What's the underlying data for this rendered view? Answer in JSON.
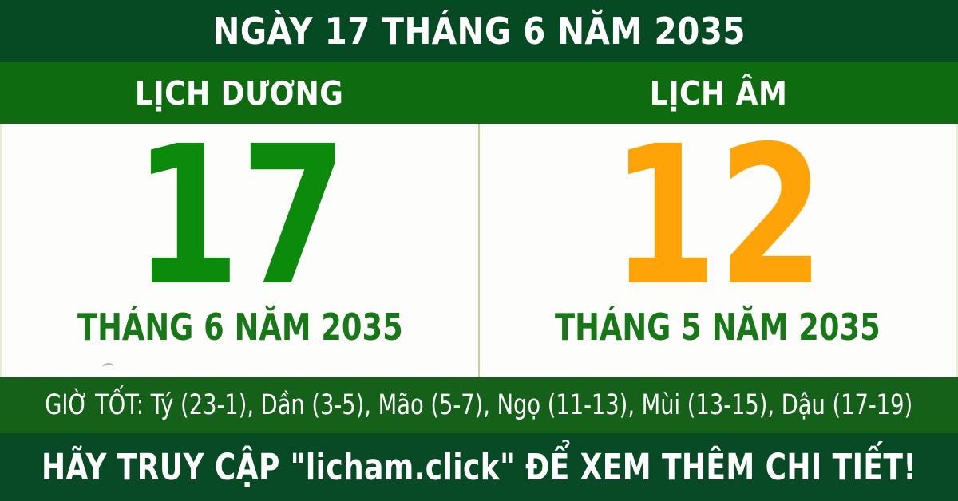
{
  "banner": {
    "title": "NGÀY 17 THÁNG 6 NĂM 2035"
  },
  "calendar": {
    "solar": {
      "label": "LỊCH DƯƠNG",
      "day": "17",
      "month_year": "THÁNG 6 NĂM 2035"
    },
    "lunar": {
      "label": "LỊCH ÂM",
      "day": "12",
      "month_year": "THÁNG 5 NĂM 2035"
    }
  },
  "good_hours": "GIỜ TỐT: Tý (23-1), Dần (3-5), Mão (5-7), Ngọ (11-13), Mùi (13-15), Dậu (17-19)",
  "footer": {
    "cta": "HÃY TRUY CẬP \"licham.click\" ĐỂ XEM THÊM CHI TIẾT!"
  },
  "colors": {
    "band_dark_green": "#064a23",
    "header_band_green": "#0e6b10",
    "hours_band_green": "#156119",
    "footer_band_green": "#074a25",
    "solar_day_green": "#0b8a0b",
    "lunar_day_orange": "#ffa408",
    "month_text_green": "#187818",
    "divider_light_green": "#b7d98e",
    "body_background": "#fdfdfb"
  }
}
